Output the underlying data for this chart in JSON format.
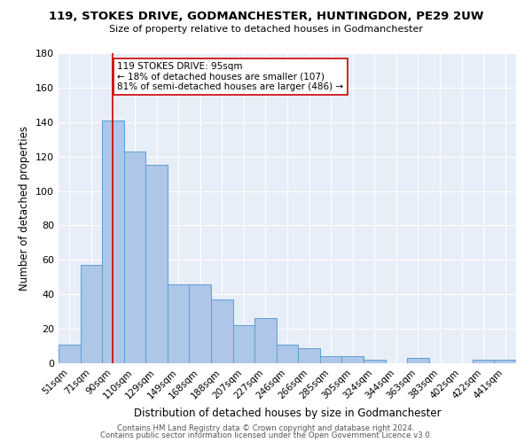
{
  "title1": "119, STOKES DRIVE, GODMANCHESTER, HUNTINGDON, PE29 2UW",
  "title2": "Size of property relative to detached houses in Godmanchester",
  "xlabel": "Distribution of detached houses by size in Godmanchester",
  "ylabel": "Number of detached properties",
  "categories": [
    "51sqm",
    "71sqm",
    "90sqm",
    "110sqm",
    "129sqm",
    "149sqm",
    "168sqm",
    "188sqm",
    "207sqm",
    "227sqm",
    "246sqm",
    "266sqm",
    "285sqm",
    "305sqm",
    "324sqm",
    "344sqm",
    "363sqm",
    "383sqm",
    "402sqm",
    "422sqm",
    "441sqm"
  ],
  "values": [
    11,
    57,
    141,
    123,
    115,
    46,
    46,
    37,
    22,
    26,
    11,
    9,
    4,
    4,
    2,
    0,
    3,
    0,
    0,
    2,
    2
  ],
  "bar_color": "#aec6e8",
  "bar_edge_color": "#5a9fd4",
  "vline_x": 2,
  "vline_color": "#cc0000",
  "annotation_text": "119 STOKES DRIVE: 95sqm\n← 18% of detached houses are smaller (107)\n81% of semi-detached houses are larger (486) →",
  "annotation_box_color": "#ffffff",
  "annotation_box_edge": "#cc0000",
  "ylim": [
    0,
    180
  ],
  "yticks": [
    0,
    20,
    40,
    60,
    80,
    100,
    120,
    140,
    160,
    180
  ],
  "footer1": "Contains HM Land Registry data © Crown copyright and database right 2024.",
  "footer2": "Contains public sector information licensed under the Open Government Licence v3.0.",
  "bg_color": "#e8eef8"
}
